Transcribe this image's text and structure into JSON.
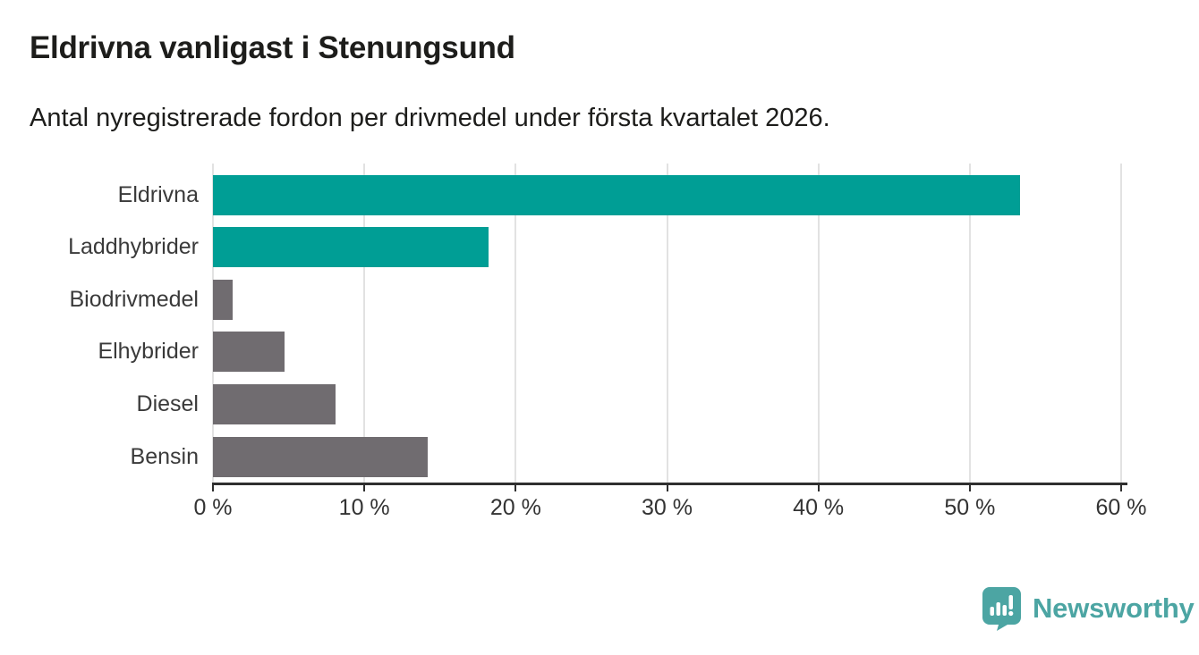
{
  "page": {
    "background": "#ffffff",
    "text_color": "#1d1d1b"
  },
  "header": {
    "title": "Eldrivna vanligast i Stenungsund",
    "subtitle": "Antal nyregistrerade fordon per drivmedel under första kvartalet 2026."
  },
  "chart_data": {
    "type": "bar",
    "orientation": "horizontal",
    "title": "Eldrivna vanligast i Stenungsund",
    "subtitle": "Antal nyregistrerade fordon per drivmedel under första kvartalet 2026.",
    "categories": [
      "Eldrivna",
      "Laddhybrider",
      "Biodrivmedel",
      "Elhybrider",
      "Diesel",
      "Bensin"
    ],
    "values": [
      53.3,
      18.2,
      1.3,
      4.7,
      8.1,
      14.2
    ],
    "highlighted": [
      true,
      true,
      false,
      false,
      false,
      false
    ],
    "unit": "%",
    "xlabel": "",
    "ylabel": "",
    "xlim": [
      0,
      60
    ],
    "xticks": [
      0,
      10,
      20,
      30,
      40,
      50,
      60
    ],
    "xtick_suffix": " %",
    "grid": true,
    "legend": "none",
    "colors": {
      "highlight": "#009e95",
      "default": "#706c70",
      "grid": "#e2e2e2",
      "axis": "#2f2f2f",
      "tick_text": "#333333",
      "label_text": "#3a3a3a"
    }
  },
  "footer": {
    "brand": "Newsworthy",
    "brand_color": "#4ca5a3",
    "logo_icon": "newsworthy-chart-pin-icon"
  }
}
